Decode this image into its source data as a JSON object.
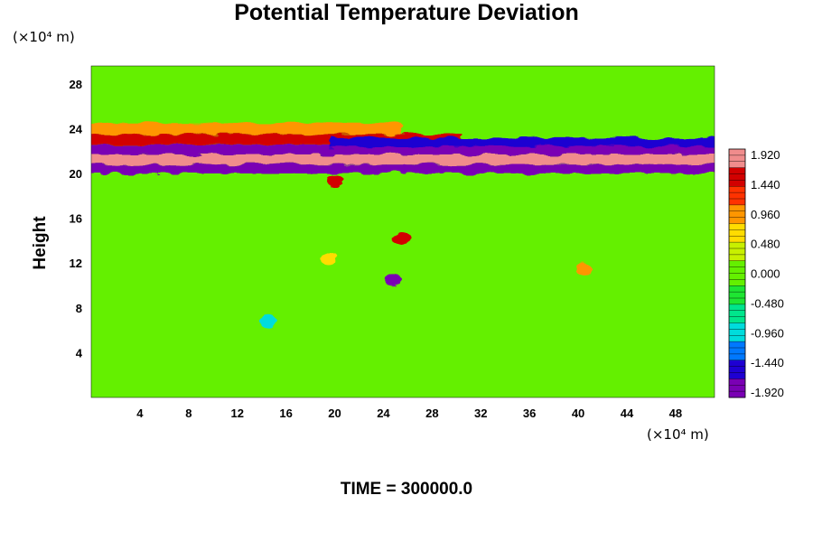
{
  "chart_data": {
    "type": "heatmap",
    "title": "Potential Temperature Deviation",
    "ylabel": "Height",
    "xlabel": "",
    "x_unit": "(×10⁴ m)",
    "y_unit": "(×10⁴ m)",
    "xlim": [
      0,
      51.2
    ],
    "ylim": [
      0,
      29.6
    ],
    "x_ticks": [
      4,
      8,
      12,
      16,
      20,
      24,
      28,
      32,
      36,
      40,
      44,
      48
    ],
    "y_ticks": [
      4,
      8,
      12,
      16,
      20,
      24,
      28
    ],
    "colorbar": {
      "vmin": -1.92,
      "vmax": 1.92,
      "tick_labels": [
        "1.920",
        "1.440",
        "0.960",
        "0.480",
        "0.000",
        "-0.480",
        "-0.960",
        "-1.440",
        "-1.920"
      ],
      "colors": [
        "#7a00b4",
        "#1e00d2",
        "#0078ff",
        "#00dcdc",
        "#00e68c",
        "#1ee632",
        "#64f000",
        "#c8f000",
        "#ffdc00",
        "#ff9600",
        "#ff3200",
        "#d20000",
        "#f08c8c"
      ]
    },
    "background_value": 0.0,
    "features": [
      {
        "type": "band",
        "x": [
          0,
          51.2
        ],
        "y": [
          20.0,
          20.8
        ],
        "value": -1.92
      },
      {
        "type": "band",
        "x": [
          0,
          51.2
        ],
        "y": [
          20.8,
          21.7
        ],
        "value": 1.92
      },
      {
        "type": "band",
        "x": [
          0,
          51.2
        ],
        "y": [
          21.7,
          22.6
        ],
        "value": -1.92
      },
      {
        "type": "band",
        "x": [
          0,
          30
        ],
        "y": [
          22.6,
          23.5
        ],
        "value": 1.6
      },
      {
        "type": "band",
        "x": [
          20,
          51.2
        ],
        "y": [
          22.4,
          23.2
        ],
        "value": -1.6
      },
      {
        "type": "band",
        "x": [
          0,
          25
        ],
        "y": [
          23.5,
          24.5
        ],
        "value": 1.0
      },
      {
        "type": "blob",
        "x": 25.5,
        "y": 14.2,
        "value": 1.6
      },
      {
        "type": "blob",
        "x": 24.8,
        "y": 10.5,
        "value": -1.92
      },
      {
        "type": "blob",
        "x": 20.0,
        "y": 19.3,
        "value": 1.4
      },
      {
        "type": "blob",
        "x": 14.5,
        "y": 6.8,
        "value": -0.96
      },
      {
        "type": "blob",
        "x": 19.5,
        "y": 12.5,
        "value": 0.7
      },
      {
        "type": "blob",
        "x": 40.5,
        "y": 11.5,
        "value": 0.8
      }
    ]
  },
  "footer": {
    "text": "TIME = 300000.0"
  }
}
